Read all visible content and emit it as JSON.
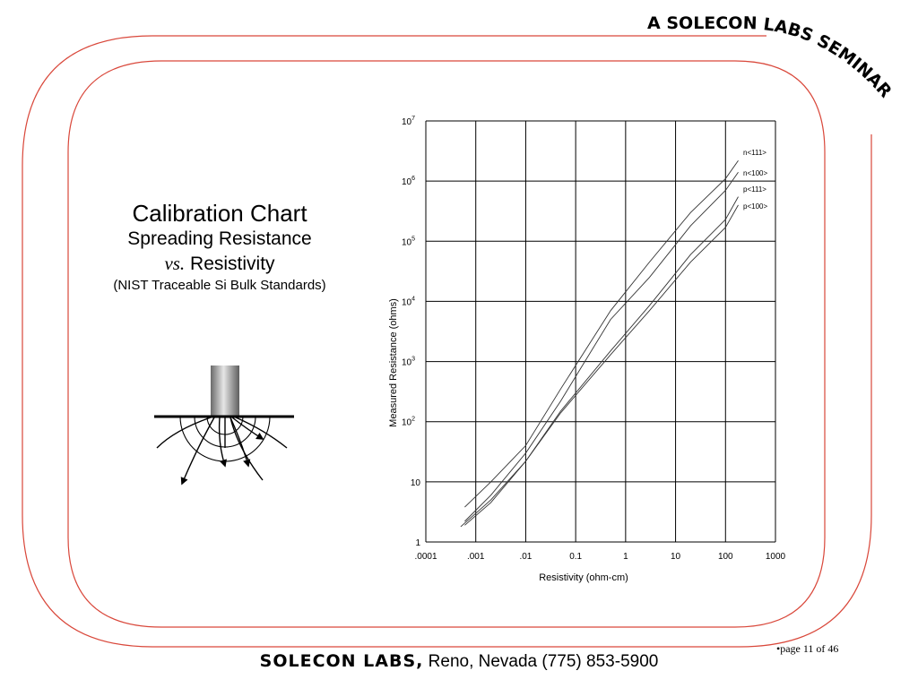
{
  "seminar_banner": "A SOLECON LABS SEMINAR",
  "heading": {
    "title": "Calibration Chart",
    "subtitle1": "Spreading Resistance",
    "vs": "vs.",
    "vs_rest": " Resistivity",
    "subtitle3": "(NIST Traceable Si Bulk Standards)"
  },
  "footer": {
    "brand": "SOLECON LABS,",
    "location": " Reno, Nevada (775) 853-5900",
    "page": "•page 11 of 46"
  },
  "colors": {
    "frame_line": "#d9473a",
    "grid_line": "#000000",
    "curve_line": "#333333"
  },
  "chart_data": {
    "type": "line",
    "xlabel": "Resistivity (ohm-cm)",
    "ylabel": "Measured Resistance  (ohms)",
    "x_scale": "log",
    "y_scale": "log",
    "xlim": [
      0.0001,
      1000
    ],
    "ylim": [
      1,
      10000000
    ],
    "grid": true,
    "x_ticks": [
      ".0001",
      ".001",
      ".01",
      "0.1",
      "1",
      "10",
      "100",
      "1000"
    ],
    "y_ticks": [
      {
        "base": "1",
        "exp": ""
      },
      {
        "base": "10",
        "exp": ""
      },
      {
        "base": "10",
        "exp": "2"
      },
      {
        "base": "10",
        "exp": "3"
      },
      {
        "base": "10",
        "exp": "4"
      },
      {
        "base": "10",
        "exp": "5"
      },
      {
        "base": "10",
        "exp": "6"
      },
      {
        "base": "10",
        "exp": "7"
      }
    ],
    "series": [
      {
        "name": "n<111>",
        "x": [
          0.0006,
          0.002,
          0.01,
          0.05,
          0.5,
          3,
          20,
          100,
          180
        ],
        "y": [
          3.8,
          10,
          40,
          350,
          7000,
          45000,
          300000,
          1100000,
          2200000
        ]
      },
      {
        "name": "n<100>",
        "x": [
          0.0006,
          0.002,
          0.01,
          0.05,
          0.5,
          3,
          20,
          100,
          180
        ],
        "y": [
          2.2,
          6,
          30,
          220,
          5000,
          25000,
          180000,
          700000,
          1400000
        ]
      },
      {
        "name": "p<111>",
        "x": [
          0.0006,
          0.002,
          0.01,
          0.05,
          0.5,
          3,
          20,
          100,
          180
        ],
        "y": [
          1.9,
          4.5,
          22,
          150,
          1500,
          8500,
          60000,
          230000,
          550000
        ]
      },
      {
        "name": "p<100>",
        "x": [
          0.0005,
          0.002,
          0.01,
          0.05,
          0.5,
          3,
          20,
          100,
          180
        ],
        "y": [
          1.8,
          5,
          22,
          140,
          1300,
          7000,
          45000,
          170000,
          400000
        ]
      }
    ]
  }
}
